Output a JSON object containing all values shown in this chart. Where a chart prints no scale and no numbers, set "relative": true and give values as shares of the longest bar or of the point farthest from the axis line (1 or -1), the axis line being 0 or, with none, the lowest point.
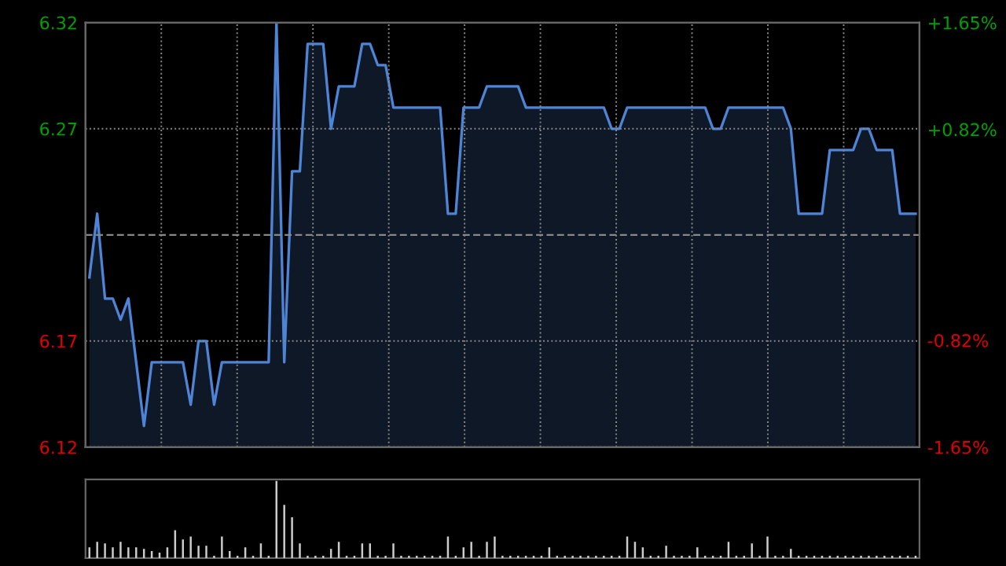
{
  "chart_data": [
    {
      "type": "area",
      "categories": [
        null,
        null,
        null,
        null,
        null,
        null,
        null,
        null,
        null,
        null,
        null,
        null,
        null,
        null,
        null,
        null,
        null,
        null,
        null,
        null,
        null,
        null,
        null,
        null,
        null,
        null,
        null,
        null,
        null,
        null,
        null,
        null,
        null,
        null,
        null,
        null,
        null,
        null,
        null,
        null,
        null,
        null,
        null,
        null,
        null,
        null,
        null,
        null,
        null,
        null,
        null,
        null,
        null,
        null,
        null,
        null,
        null,
        null,
        null,
        null,
        null,
        null,
        null,
        null,
        null,
        null,
        null,
        null,
        null,
        null,
        null,
        null,
        null,
        null,
        null,
        null,
        null,
        null,
        null,
        null,
        null,
        null,
        null,
        null,
        null,
        null,
        null,
        null,
        null,
        null,
        null,
        null,
        null,
        null,
        null,
        null,
        null,
        null,
        null,
        null,
        null,
        null,
        null,
        null,
        null,
        null,
        null
      ],
      "series": [
        {
          "color": "#4d84d6",
          "values": [
            6.2,
            6.23,
            6.19,
            6.19,
            6.18,
            6.19,
            6.16,
            6.13,
            6.16,
            6.16,
            6.16,
            6.16,
            6.16,
            6.14,
            6.17,
            6.17,
            6.14,
            6.16,
            6.16,
            6.16,
            6.16,
            6.16,
            6.16,
            6.16,
            6.32,
            6.16,
            6.25,
            6.25,
            6.31,
            6.31,
            6.31,
            6.27,
            6.29,
            6.29,
            6.29,
            6.31,
            6.31,
            6.3,
            6.3,
            6.28,
            6.28,
            6.28,
            6.28,
            6.28,
            6.28,
            6.28,
            6.23,
            6.23,
            6.28,
            6.28,
            6.28,
            6.29,
            6.29,
            6.29,
            6.29,
            6.29,
            6.28,
            6.28,
            6.28,
            6.28,
            6.28,
            6.28,
            6.28,
            6.28,
            6.28,
            6.28,
            6.28,
            6.27,
            6.27,
            6.28,
            6.28,
            6.28,
            6.28,
            6.28,
            6.28,
            6.28,
            6.28,
            6.28,
            6.28,
            6.28,
            6.27,
            6.27,
            6.28,
            6.28,
            6.28,
            6.28,
            6.28,
            6.28,
            6.28,
            6.28,
            6.27,
            6.23,
            6.23,
            6.23,
            6.23,
            6.26,
            6.26,
            6.26,
            6.26,
            6.27,
            6.27,
            6.26,
            6.26,
            6.26,
            6.23,
            6.23,
            6.23
          ]
        }
      ],
      "ylim": [
        6.12,
        6.32
      ],
      "yticks": [
        6.12,
        6.17,
        6.27,
        6.32
      ],
      "y2lim": [
        -1.65,
        1.65
      ],
      "y2ticks": [
        {
          "value": -1.65,
          "label": "-1.65%"
        },
        {
          "value": -0.82,
          "label": "-0.82%"
        },
        {
          "value": 0.82,
          "label": "+0.82%"
        },
        {
          "value": 1.65,
          "label": "+1.65%"
        }
      ],
      "ref_lines": [
        {
          "axis": "y",
          "value": 6.22,
          "line_style": "dashed",
          "color": "#888888"
        }
      ],
      "grid": true,
      "tick_labels": "y"
    },
    {
      "type": "bar",
      "relative": true,
      "categories": [
        null,
        null,
        null,
        null,
        null,
        null,
        null,
        null,
        null,
        null,
        null,
        null,
        null,
        null,
        null,
        null,
        null,
        null,
        null,
        null,
        null,
        null,
        null,
        null,
        null,
        null,
        null,
        null,
        null,
        null,
        null,
        null,
        null,
        null,
        null,
        null,
        null,
        null,
        null,
        null,
        null,
        null,
        null,
        null,
        null,
        null,
        null,
        null,
        null,
        null,
        null,
        null,
        null,
        null,
        null,
        null,
        null,
        null,
        null,
        null,
        null,
        null,
        null,
        null,
        null,
        null,
        null,
        null,
        null,
        null,
        null,
        null,
        null,
        null,
        null,
        null,
        null,
        null,
        null,
        null,
        null,
        null,
        null,
        null,
        null,
        null,
        null,
        null,
        null,
        null,
        null,
        null,
        null,
        null,
        null,
        null,
        null,
        null,
        null,
        null,
        null,
        null,
        null,
        null,
        null,
        null,
        null
      ],
      "series": [
        {
          "color": "#cccccc",
          "values": [
            0.14,
            0.21,
            0.19,
            0.14,
            0.21,
            0.14,
            0.14,
            0.12,
            0.09,
            0.07,
            0.14,
            0.36,
            0.24,
            0.28,
            0.16,
            0.16,
            0.03,
            0.28,
            0.09,
            0.03,
            0.14,
            0.03,
            0.19,
            0.03,
            1.0,
            0.69,
            0.53,
            0.19,
            0.03,
            0.03,
            0.03,
            0.12,
            0.21,
            0.03,
            0.03,
            0.19,
            0.19,
            0.03,
            0.03,
            0.19,
            0.03,
            0.03,
            0.03,
            0.03,
            0.03,
            0.03,
            0.28,
            0.03,
            0.14,
            0.21,
            0.03,
            0.21,
            0.28,
            0.03,
            0.03,
            0.03,
            0.03,
            0.03,
            0.03,
            0.14,
            0.03,
            0.03,
            0.03,
            0.03,
            0.03,
            0.03,
            0.03,
            0.03,
            0.03,
            0.28,
            0.21,
            0.14,
            0.03,
            0.03,
            0.16,
            0.03,
            0.03,
            0.03,
            0.14,
            0.03,
            0.03,
            0.03,
            0.21,
            0.03,
            0.03,
            0.19,
            0.03,
            0.28,
            0.03,
            0.03,
            0.12,
            0.03,
            0.03,
            0.03,
            0.03,
            0.03,
            0.03,
            0.03,
            0.03,
            0.03,
            0.03,
            0.03,
            0.03,
            0.03,
            0.03,
            0.03,
            0.03
          ]
        }
      ],
      "grid": false
    }
  ]
}
